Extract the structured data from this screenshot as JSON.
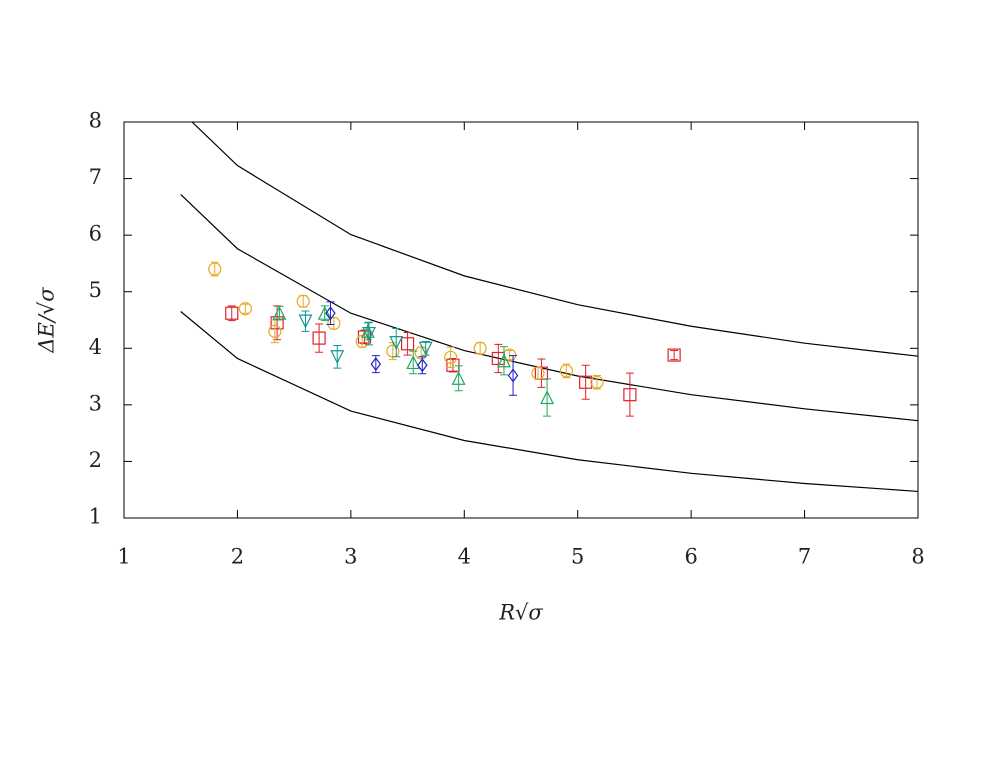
{
  "chart_data": {
    "type": "scatter",
    "xlabel": "R√σ",
    "ylabel": "ΔE/√σ",
    "xlim": [
      1,
      8
    ],
    "ylim": [
      1,
      8
    ],
    "xticks": [
      1,
      2,
      3,
      4,
      5,
      6,
      7,
      8
    ],
    "yticks": [
      1,
      2,
      3,
      4,
      5,
      6,
      7,
      8
    ],
    "series": [
      {
        "color": "#e0202a",
        "marker": "square",
        "x": [
          1.95,
          2.35,
          2.72,
          3.12,
          3.5,
          3.9,
          4.3,
          4.68,
          5.07,
          5.46,
          5.85
        ],
        "values": [
          4.62,
          4.45,
          4.18,
          4.2,
          4.08,
          3.7,
          3.82,
          3.56,
          3.4,
          3.18,
          3.88
        ],
        "errors": [
          0.13,
          0.3,
          0.25,
          0.12,
          0.2,
          0.12,
          0.25,
          0.25,
          0.3,
          0.38,
          0.08
        ]
      },
      {
        "color": "#e8a820",
        "marker": "circle",
        "x": [
          1.8,
          2.07,
          2.33,
          2.58,
          2.85,
          3.1,
          3.37,
          3.62,
          3.88,
          4.14,
          4.4,
          4.65,
          4.9,
          5.17
        ],
        "values": [
          5.4,
          4.7,
          4.3,
          4.83,
          4.44,
          4.12,
          3.95,
          3.92,
          3.84,
          4.0,
          3.88,
          3.56,
          3.6,
          3.4
        ],
        "errors": [
          0.12,
          0.08,
          0.2,
          0.1,
          0.1,
          0.1,
          0.15,
          0.1,
          0.18,
          0.1,
          0.08,
          0.1,
          0.12,
          0.12
        ]
      },
      {
        "color": "#20a860",
        "marker": "triangle-up",
        "x": [
          2.37,
          2.77,
          3.15,
          3.55,
          3.95,
          4.35,
          4.73
        ],
        "values": [
          4.62,
          4.62,
          4.3,
          3.75,
          3.47,
          3.78,
          3.13
        ],
        "errors": [
          0.12,
          0.13,
          0.15,
          0.2,
          0.22,
          0.25,
          0.33
        ]
      },
      {
        "color": "#109890",
        "marker": "triangle-down",
        "x": [
          2.6,
          2.88,
          3.16,
          3.4,
          3.66
        ],
        "values": [
          4.48,
          3.85,
          4.26,
          4.1,
          4.0
        ],
        "errors": [
          0.18,
          0.2,
          0.2,
          0.25,
          0.12
        ]
      },
      {
        "color": "#2020c8",
        "marker": "diamond",
        "x": [
          2.82,
          3.22,
          3.63,
          4.43
        ],
        "values": [
          4.62,
          3.72,
          3.7,
          3.52
        ],
        "errors": [
          0.2,
          0.15,
          0.15,
          0.35
        ]
      }
    ],
    "curves": [
      {
        "color": "#000000",
        "x": [
          1.6,
          2,
          3,
          4,
          5,
          6,
          7,
          8
        ],
        "values": [
          8,
          7.23,
          6.01,
          5.28,
          4.77,
          4.39,
          4.09,
          3.86
        ]
      },
      {
        "color": "#000000",
        "x": [
          1.5,
          2,
          3,
          4,
          5,
          6,
          7,
          8
        ],
        "values": [
          6.72,
          5.76,
          4.62,
          3.96,
          3.51,
          3.18,
          2.93,
          2.72
        ]
      },
      {
        "color": "#000000",
        "x": [
          1.5,
          2,
          3,
          4,
          5,
          6,
          7,
          8
        ],
        "values": [
          4.65,
          3.82,
          2.89,
          2.37,
          2.03,
          1.79,
          1.61,
          1.47
        ]
      }
    ]
  }
}
